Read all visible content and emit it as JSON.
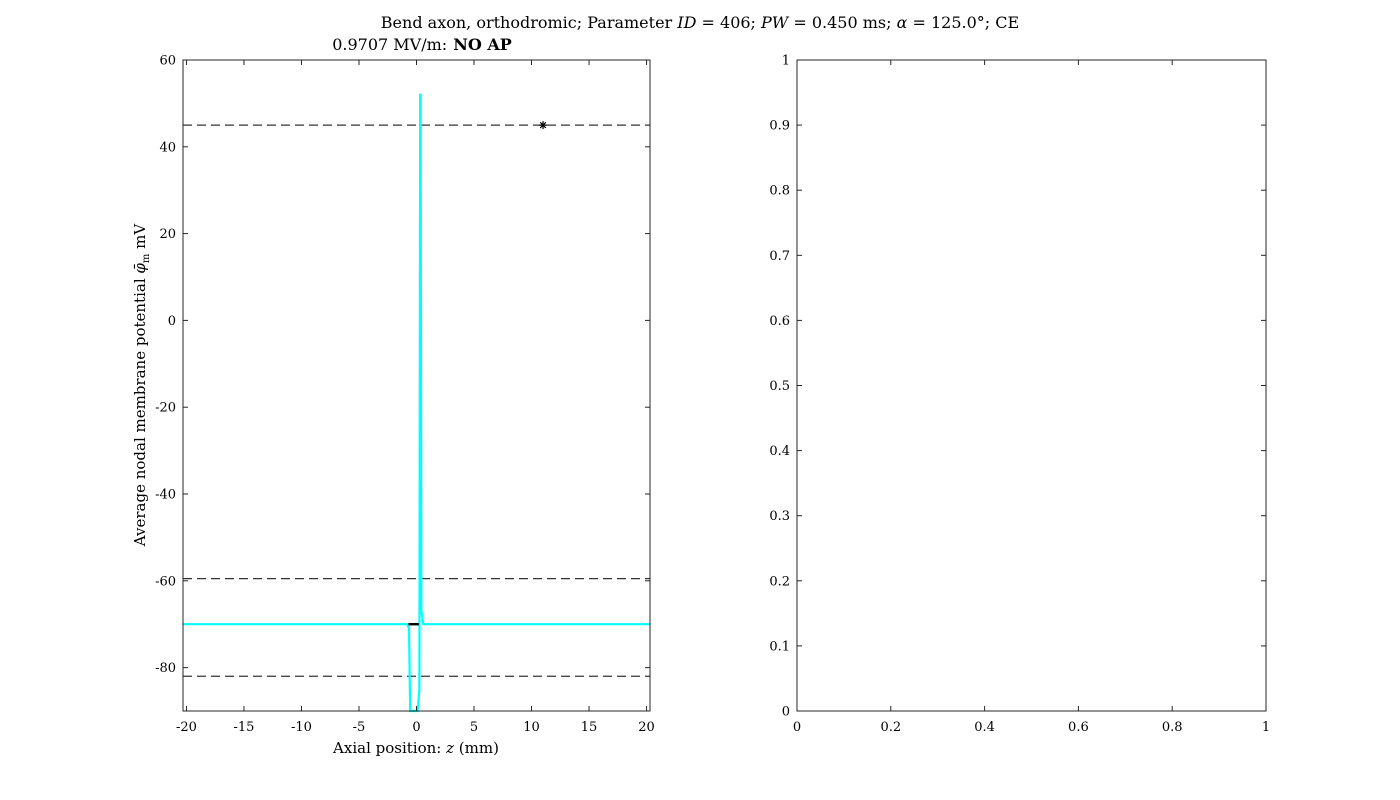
{
  "figure_title": "Bend axon, orthodromic; Parameter ID = 406; PW = 0.450 ms; α = 125.0°; CE",
  "chart_data": [
    {
      "type": "line",
      "subtitle_value": "0.9707 MV/m:",
      "subtitle_status": "NO AP",
      "xlabel": "Axial position: z (mm)",
      "ylabel": "Average nodal membrane potential φ̄m mV",
      "xlim": [
        -20.3,
        20.3
      ],
      "ylim": [
        -90,
        60
      ],
      "xticks": [
        -20,
        -15,
        -10,
        -5,
        0,
        5,
        10,
        15,
        20
      ],
      "yticks": [
        -80,
        -60,
        -40,
        -20,
        0,
        20,
        40,
        60
      ],
      "grid": false,
      "reference_lines": [
        {
          "y": 45,
          "style": "dashed",
          "color": "#333333"
        },
        {
          "y": -59.5,
          "style": "dashed",
          "color": "#333333"
        },
        {
          "y": -82,
          "style": "dashed",
          "color": "#333333"
        }
      ],
      "marker": {
        "x": 11,
        "y": 45,
        "symbol": "asterisk"
      },
      "series": [
        {
          "color": "#00ffff",
          "points": [
            [
              -20.3,
              -70
            ],
            [
              -0.8,
              -70
            ],
            [
              -0.65,
              -71
            ],
            [
              -0.55,
              -90
            ],
            [
              -0.05,
              -90
            ],
            [
              0.1,
              -90
            ],
            [
              0.25,
              -85
            ],
            [
              0.32,
              52
            ],
            [
              0.36,
              52
            ],
            [
              0.42,
              -67
            ],
            [
              0.6,
              -70
            ],
            [
              20.3,
              -70
            ]
          ]
        },
        {
          "color": "#000000",
          "points": [
            [
              -0.7,
              -70
            ],
            [
              0.2,
              -70
            ]
          ]
        }
      ]
    },
    {
      "type": "line",
      "xlim": [
        0,
        1
      ],
      "ylim": [
        0,
        1
      ],
      "xticks": [
        0,
        0.2,
        0.4,
        0.6,
        0.8,
        1
      ],
      "yticks": [
        0,
        0.1,
        0.2,
        0.3,
        0.4,
        0.5,
        0.6,
        0.7,
        0.8,
        0.9,
        1
      ],
      "grid": false,
      "series": []
    }
  ]
}
